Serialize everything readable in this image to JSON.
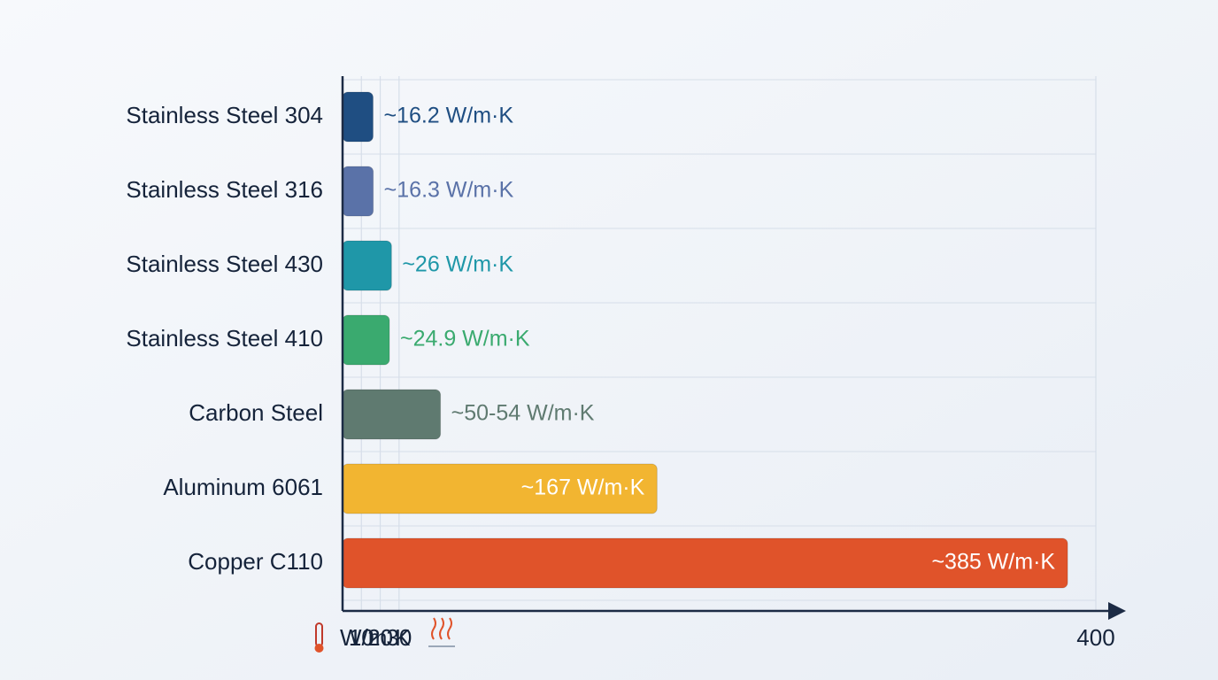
{
  "chart_data": {
    "type": "bar",
    "orientation": "horizontal",
    "x_label": "W/m·K",
    "categories": [
      "Stainless Steel 304",
      "Stainless Steel 316",
      "Stainless Steel 430",
      "Stainless Steel 410",
      "Carbon Steel",
      "Aluminum 6061",
      "Copper C110"
    ],
    "values": [
      16.2,
      16.3,
      26,
      24.9,
      52,
      167,
      385
    ],
    "value_labels": [
      "~16.2 W/m·K",
      "~16.3 W/m·K",
      "~26 W/m·K",
      "~24.9 W/m·K",
      "~50-54 W/m·K",
      "~167 W/m·K",
      "~385 W/m·K"
    ],
    "colors": [
      "#1f4e82",
      "#5a72a8",
      "#1f97a8",
      "#3aaa6f",
      "#5f7a70",
      "#f2b531",
      "#e0532a"
    ],
    "xlim": [
      0,
      400
    ],
    "xticks": [
      10,
      20,
      30,
      400
    ],
    "grid": true
  }
}
